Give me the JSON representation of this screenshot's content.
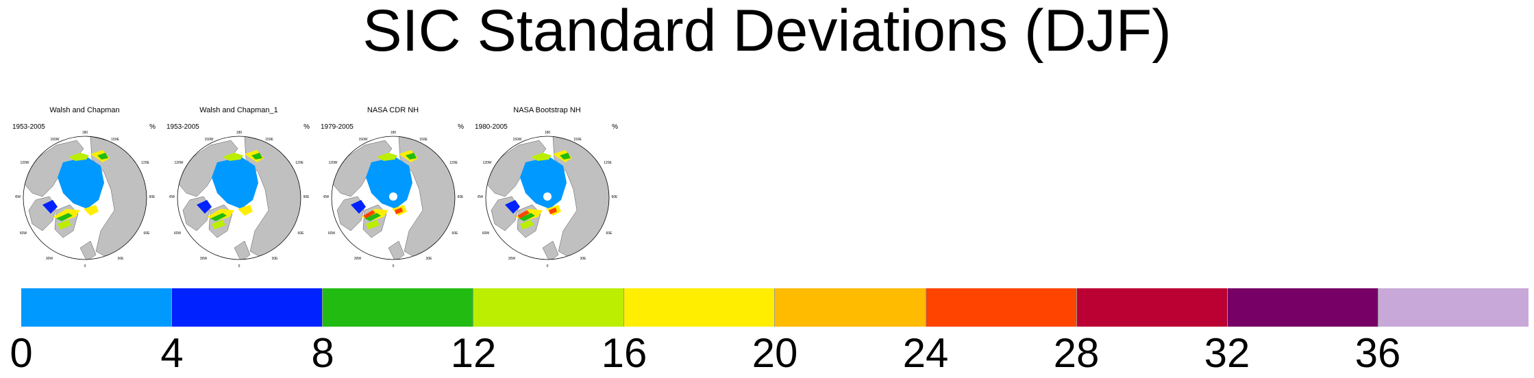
{
  "title": "SIC Standard Deviations (DJF)",
  "panels": [
    {
      "title": "Walsh and Chapman",
      "years": "1953-2005",
      "units": "%"
    },
    {
      "title": "Walsh and Chapman_1",
      "years": "1953-2005",
      "units": "%"
    },
    {
      "title": "NASA CDR NH",
      "years": "1979-2005",
      "units": "%"
    },
    {
      "title": "NASA Bootstrap NH",
      "years": "1980-2005",
      "units": "%"
    }
  ],
  "map_labels": {
    "top": "180",
    "upper_left": "150W",
    "upper_right": "150E",
    "mid_upper_left": "120W",
    "mid_upper_right": "120E",
    "left": "90W",
    "right": "90E",
    "mid_lower_left": "60W",
    "mid_lower_right": "60E",
    "lower_left": "30W",
    "lower_right": "30E",
    "bottom": "0"
  },
  "colorbar": {
    "colors": [
      "#0099ff",
      "#0022ff",
      "#22bb11",
      "#bbee00",
      "#ffee00",
      "#ffbb00",
      "#ff4400",
      "#bb0033",
      "#770066",
      "#c8a8d8"
    ],
    "ticks": [
      "0",
      "4",
      "8",
      "12",
      "16",
      "20",
      "24",
      "28",
      "32",
      "36"
    ]
  }
}
